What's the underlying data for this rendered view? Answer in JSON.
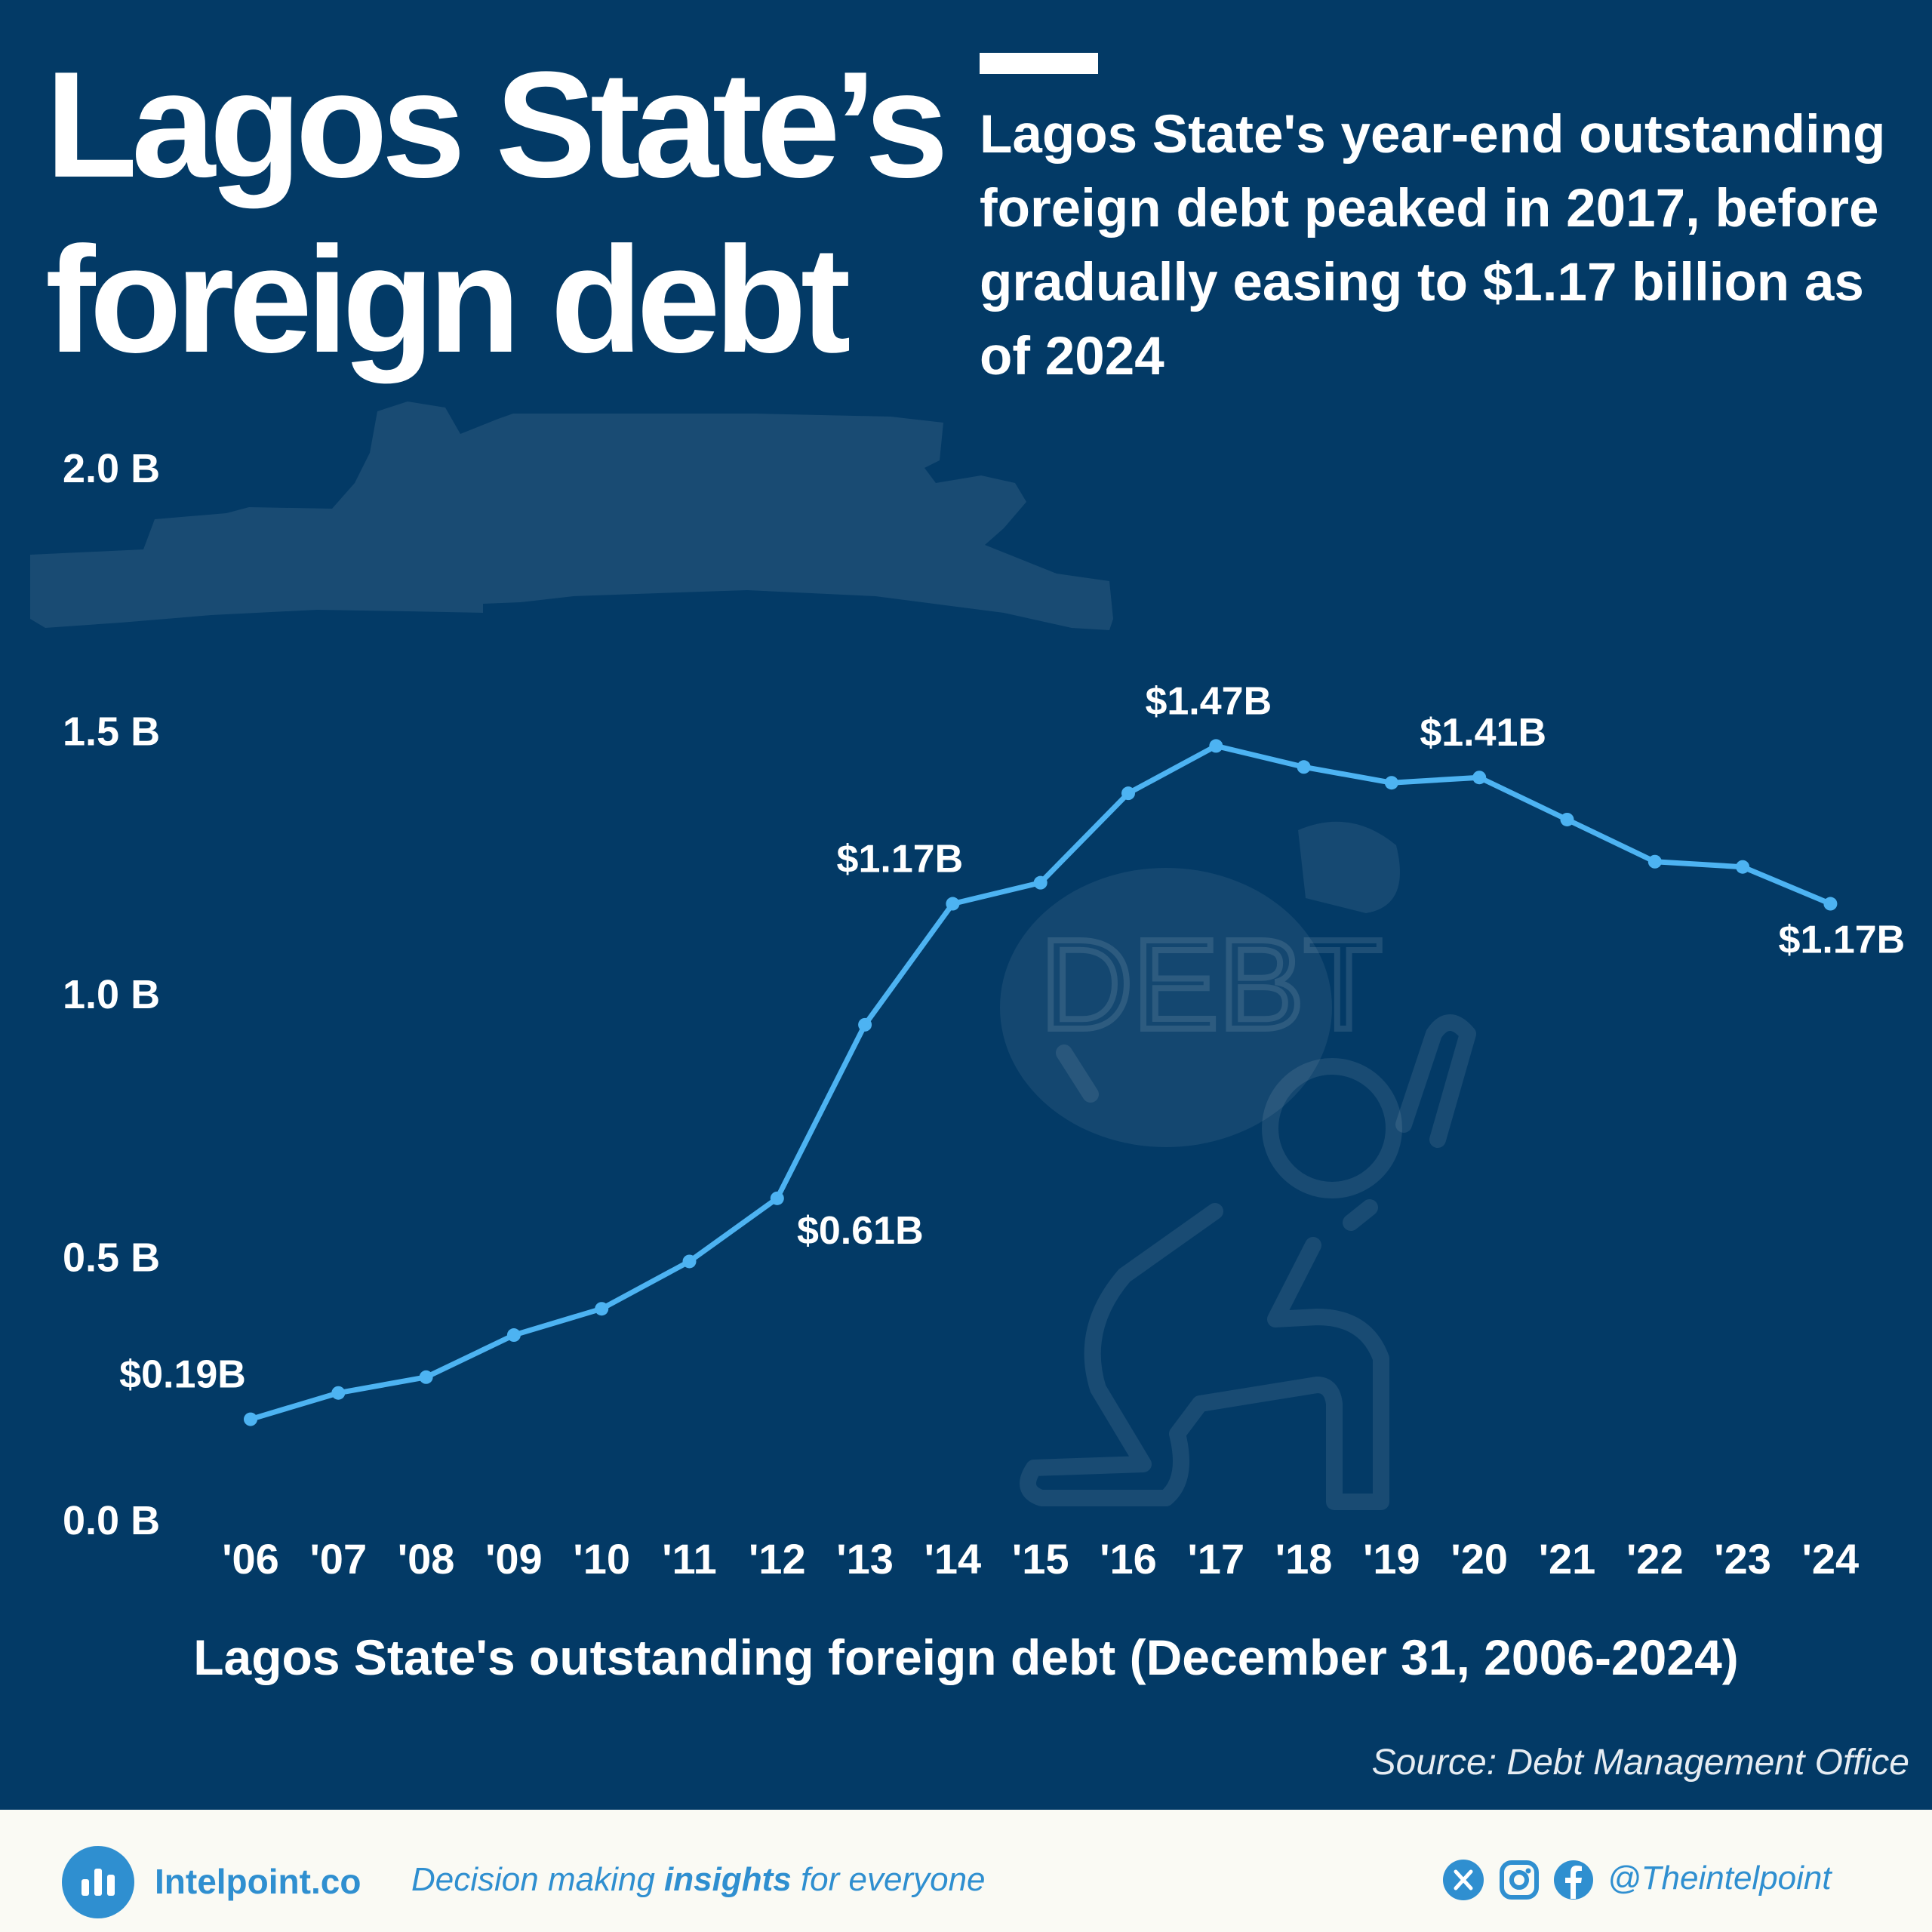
{
  "header": {
    "title_line1": "Lagos State’s",
    "title_line2": "foreign debt",
    "subtitle": "Lagos State's year-end outstanding foreign debt peaked in 2017, before gradually easing to $1.17 billion as of 2024"
  },
  "chart_data": {
    "type": "line",
    "categories": [
      "'06",
      "'07",
      "'08",
      "'09",
      "'10",
      "'11",
      "'12",
      "'13",
      "'14",
      "'15",
      "'16",
      "'17",
      "'18",
      "'19",
      "'20",
      "'21",
      "'22",
      "'23",
      "'24"
    ],
    "values": [
      0.19,
      0.24,
      0.27,
      0.35,
      0.4,
      0.49,
      0.61,
      0.94,
      1.17,
      1.21,
      1.38,
      1.47,
      1.43,
      1.4,
      1.41,
      1.33,
      1.25,
      1.24,
      1.17
    ],
    "data_labels": [
      {
        "index": 0,
        "text": "$0.19B"
      },
      {
        "index": 6,
        "text": "$0.61B"
      },
      {
        "index": 8,
        "text": "$1.17B"
      },
      {
        "index": 11,
        "text": "$1.47B"
      },
      {
        "index": 14,
        "text": "$1.41B"
      },
      {
        "index": 18,
        "text": "$1.17B"
      }
    ],
    "y_ticks": [
      {
        "value": 0.0,
        "label": "0.0 B"
      },
      {
        "value": 0.5,
        "label": "0.5 B"
      },
      {
        "value": 1.0,
        "label": "1.0 B"
      },
      {
        "value": 1.5,
        "label": "1.5 B"
      },
      {
        "value": 2.0,
        "label": "2.0 B"
      }
    ],
    "ylim": [
      0,
      2.0
    ],
    "xlabel": "Lagos State's outstanding foreign debt (December 31, 2006-2024)",
    "ylabel": "",
    "grid": false,
    "line_color": "#4db3f2",
    "watermark_text": "DEBT"
  },
  "source": "Source: Debt Management Office",
  "footer": {
    "brand": "Intelpoint.co",
    "tagline_pre": "Decision making ",
    "tagline_bold": "insights",
    "tagline_post": " for everyone",
    "handle": "@Theintelpoint",
    "social_icons": [
      "x-icon",
      "instagram-icon",
      "facebook-icon"
    ]
  },
  "colors": {
    "background": "#033a66",
    "accent": "#2f8fd0",
    "footer_bg": "#fafaf4"
  }
}
